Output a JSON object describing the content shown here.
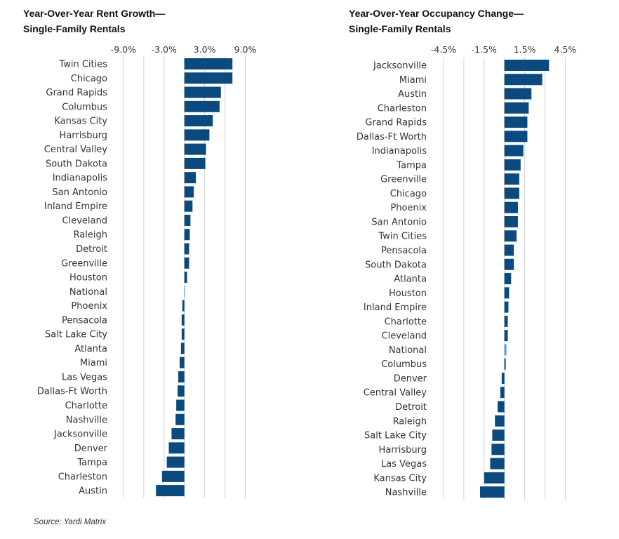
{
  "source": "Source: Yardi Matrix",
  "colors": {
    "bar": "#0b4a7e",
    "highlight": "#5b9bd5",
    "grid": "#d0d0d0"
  },
  "chart_data": [
    {
      "type": "bar",
      "orientation": "horizontal",
      "title_lines": [
        "Year-Over-Year Rent Growth—",
        "Single-Family Rentals"
      ],
      "xlim": [
        -9,
        9
      ],
      "grid_step": 3,
      "tick_labels": [
        "-9.0%",
        "-3.0%",
        "3.0%",
        "9.0%"
      ],
      "tick_values": [
        -9,
        -3,
        3,
        9
      ],
      "grid": true,
      "highlight": "National",
      "categories": [
        "Twin Cities",
        "Chicago",
        "Grand Rapids",
        "Columbus",
        "Kansas City",
        "Harrisburg",
        "Central Valley",
        "South Dakota",
        "Indianapolis",
        "San Antonio",
        "Inland Empire",
        "Cleveland",
        "Raleigh",
        "Detroit",
        "Greenville",
        "Houston",
        "National",
        "Phoenix",
        "Pensacola",
        "Salt Lake City",
        "Atlanta",
        "Miami",
        "Las Vegas",
        "Dallas-Ft Worth",
        "Charlotte",
        "Nashville",
        "Jacksonville",
        "Denver",
        "Tampa",
        "Charleston",
        "Austin"
      ],
      "values": [
        7.1,
        7.1,
        5.4,
        5.2,
        4.2,
        3.7,
        3.2,
        3.1,
        1.7,
        1.4,
        1.2,
        0.9,
        0.8,
        0.7,
        0.7,
        0.4,
        0.05,
        -0.3,
        -0.4,
        -0.4,
        -0.5,
        -0.7,
        -0.9,
        -1.0,
        -1.2,
        -1.3,
        -1.9,
        -2.3,
        -2.6,
        -3.3,
        -4.2
      ]
    },
    {
      "type": "bar",
      "orientation": "horizontal",
      "title_lines": [
        "Year-Over-Year Occupancy Change—",
        "Single-Family Rentals"
      ],
      "xlim": [
        -4.5,
        4.5
      ],
      "grid_step": 1.5,
      "tick_labels": [
        "-4.5%",
        "-1.5%",
        "1.5%",
        "4.5%"
      ],
      "tick_values": [
        -4.5,
        -1.5,
        1.5,
        4.5
      ],
      "grid": true,
      "highlight": "National",
      "categories": [
        "Jacksonville",
        "Miami",
        "Austin",
        "Charleston",
        "Grand Rapids",
        "Dallas-Ft Worth",
        "Indianapolis",
        "Tampa",
        "Greenville",
        "Chicago",
        "Phoenix",
        "San Antonio",
        "Twin Cities",
        "Pensacola",
        "South Dakota",
        "Atlanta",
        "Houston",
        "Inland Empire",
        "Charlotte",
        "Cleveland",
        "National",
        "Columbus",
        "Denver",
        "Central Valley",
        "Detroit",
        "Raleigh",
        "Salt Lake City",
        "Harrisburg",
        "Las Vegas",
        "Kansas City",
        "Nashville"
      ],
      "values": [
        3.3,
        2.8,
        2.0,
        1.8,
        1.7,
        1.7,
        1.4,
        1.2,
        1.1,
        1.1,
        1.0,
        1.0,
        0.9,
        0.7,
        0.7,
        0.5,
        0.35,
        0.3,
        0.25,
        0.25,
        0.15,
        0.1,
        -0.2,
        -0.3,
        -0.5,
        -0.7,
        -0.9,
        -0.95,
        -1.05,
        -1.5,
        -1.8
      ]
    }
  ]
}
